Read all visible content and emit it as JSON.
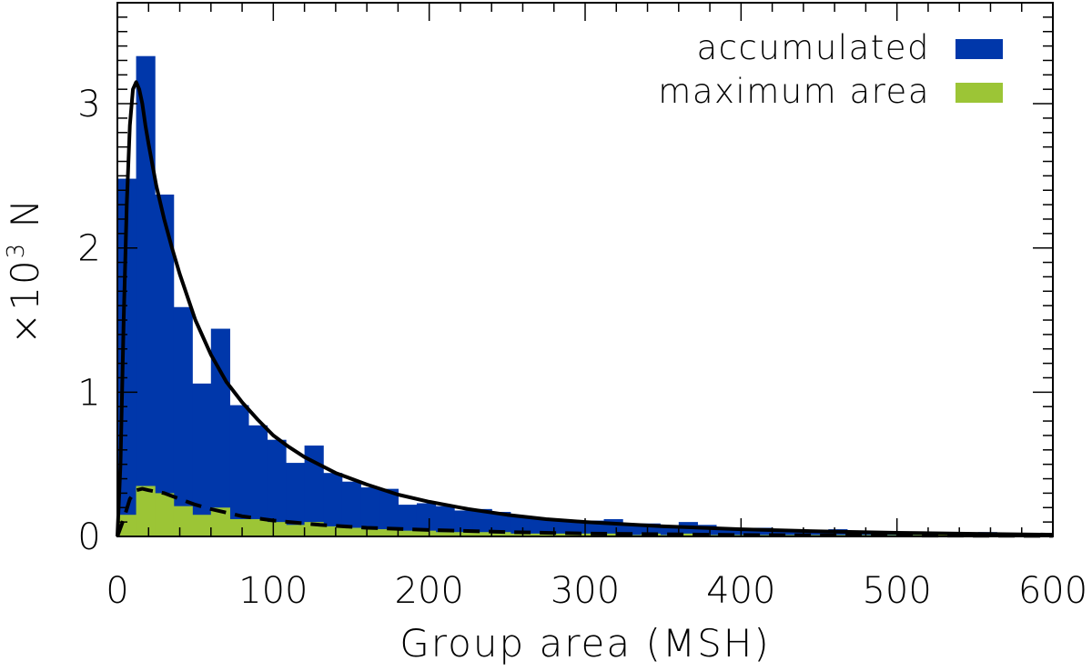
{
  "chart_data": {
    "type": "bar",
    "title": "",
    "xlabel": "Group area (MSH)",
    "ylabel_prefix": "×10",
    "ylabel_exponent": "3",
    "ylabel_suffix": " N",
    "xlim": [
      0,
      600
    ],
    "ylim": [
      0,
      3.7
    ],
    "xticks": [
      "0",
      "100",
      "200",
      "300",
      "400",
      "500",
      "600"
    ],
    "yticks": [
      "0",
      "1",
      "2",
      "3"
    ],
    "bin_width": 12,
    "legend_position": "top-right",
    "colors": {
      "accumulated": "#0037aa",
      "maximum_area": "#9cc536",
      "fit": "#000000"
    },
    "series": [
      {
        "name": "accumulated",
        "values": [
          2.48,
          3.33,
          2.37,
          1.59,
          1.06,
          1.44,
          0.91,
          0.77,
          0.67,
          0.51,
          0.63,
          0.44,
          0.38,
          0.34,
          0.33,
          0.22,
          0.23,
          0.21,
          0.18,
          0.19,
          0.17,
          0.14,
          0.12,
          0.11,
          0.1,
          0.11,
          0.12,
          0.08,
          0.09,
          0.06,
          0.1,
          0.08,
          0.06,
          0.05,
          0.06,
          0.04,
          0.04,
          0.03,
          0.05,
          0.03,
          0.03,
          0.02,
          0.02,
          0.03,
          0.02,
          0.02,
          0.03,
          0.02,
          0.02,
          0.02
        ]
      },
      {
        "name": "maximum area",
        "values": [
          0.15,
          0.35,
          0.3,
          0.21,
          0.15,
          0.2,
          0.12,
          0.12,
          0.1,
          0.08,
          0.1,
          0.07,
          0.06,
          0.05,
          0.05,
          0.04,
          0.04,
          0.03,
          0.03,
          0.03,
          0.03,
          0.02,
          0.02,
          0.02,
          0.02,
          0.02,
          0.02,
          0.01,
          0.02,
          0.01,
          0.02,
          0.01,
          0.01,
          0.01,
          0.01,
          0.01,
          0.01,
          0.01,
          0.01,
          0.01,
          0.01,
          0.01,
          0.01,
          0.01,
          0.01,
          0.01,
          0.01,
          0.01,
          0.01,
          0.01
        ]
      }
    ],
    "fit_curves": [
      {
        "style": "solid",
        "x": [
          0,
          2,
          4,
          6,
          8,
          10,
          12,
          14,
          16,
          18,
          20,
          25,
          30,
          35,
          40,
          50,
          60,
          70,
          80,
          90,
          100,
          110,
          120,
          140,
          160,
          180,
          200,
          225,
          250,
          275,
          300,
          350,
          400,
          450,
          500,
          550,
          600
        ],
        "y": [
          0,
          0.5,
          1.5,
          2.3,
          2.85,
          3.1,
          3.15,
          3.1,
          3.0,
          2.85,
          2.72,
          2.43,
          2.2,
          2.0,
          1.82,
          1.5,
          1.26,
          1.07,
          0.93,
          0.81,
          0.7,
          0.62,
          0.55,
          0.44,
          0.36,
          0.29,
          0.24,
          0.19,
          0.15,
          0.12,
          0.1,
          0.07,
          0.05,
          0.035,
          0.025,
          0.018,
          0.012
        ]
      },
      {
        "style": "dashed",
        "x": [
          0,
          4,
          8,
          12,
          16,
          20,
          30,
          40,
          50,
          60,
          80,
          100,
          130,
          160,
          200,
          250,
          300,
          400,
          500,
          600
        ],
        "y": [
          0,
          0.12,
          0.26,
          0.32,
          0.33,
          0.32,
          0.3,
          0.26,
          0.22,
          0.19,
          0.14,
          0.11,
          0.08,
          0.06,
          0.045,
          0.03,
          0.02,
          0.01,
          0.006,
          0.004
        ]
      }
    ]
  }
}
